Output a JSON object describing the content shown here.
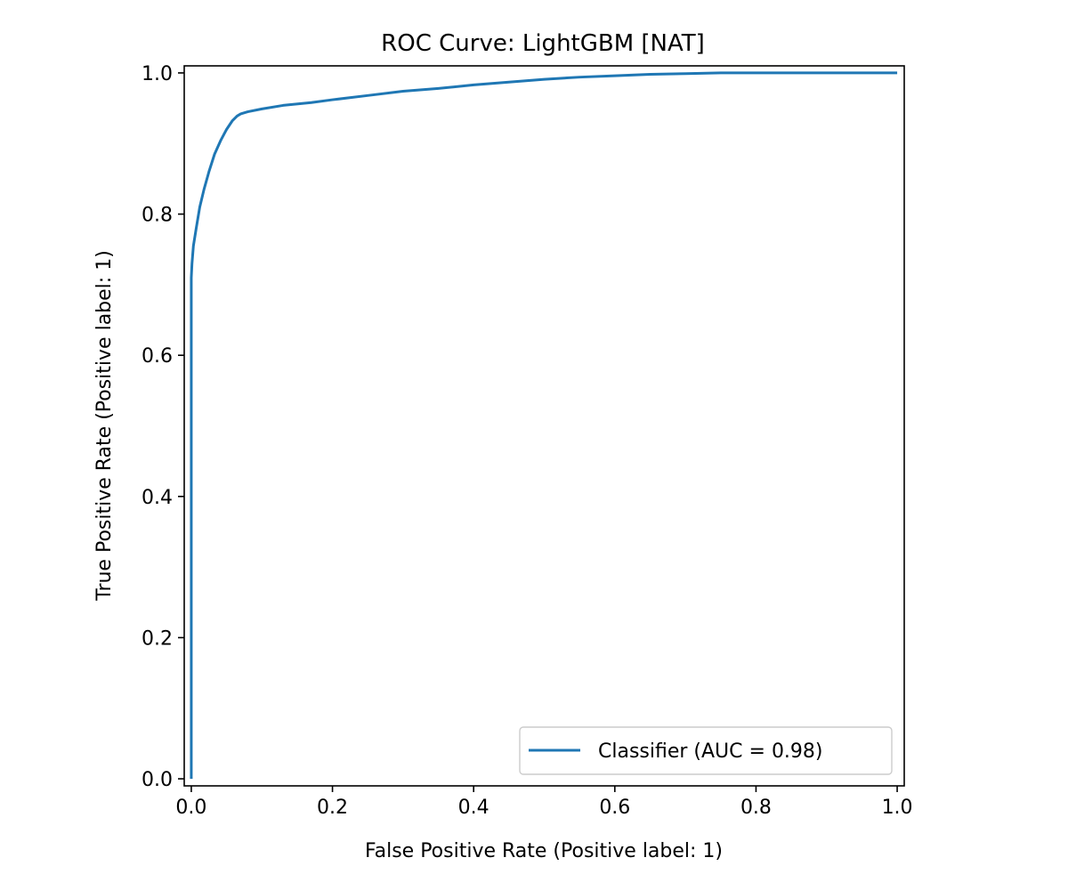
{
  "chart_data": {
    "type": "line",
    "title": "ROC Curve: LightGBM [NAT]",
    "xlabel": "False Positive Rate (Positive label: 1)",
    "ylabel": "True Positive Rate (Positive label: 1)",
    "xlim": [
      -0.01,
      1.01
    ],
    "ylim": [
      -0.01,
      1.01
    ],
    "xticks": [
      "0.0",
      "0.2",
      "0.4",
      "0.6",
      "0.8",
      "1.0"
    ],
    "yticks": [
      "0.0",
      "0.2",
      "0.4",
      "0.6",
      "0.8",
      "1.0"
    ],
    "grid": false,
    "legend_position": "lower-right",
    "series": [
      {
        "name": "Classifier (AUC = 0.98)",
        "color": "#1f77b4",
        "x": [
          0.0,
          0.0,
          0.0,
          0.001,
          0.003,
          0.007,
          0.012,
          0.018,
          0.025,
          0.033,
          0.042,
          0.05,
          0.058,
          0.065,
          0.07,
          0.08,
          0.1,
          0.13,
          0.17,
          0.2,
          0.25,
          0.3,
          0.35,
          0.4,
          0.45,
          0.5,
          0.55,
          0.6,
          0.65,
          0.7,
          0.75,
          0.8,
          0.9,
          1.0
        ],
        "y": [
          0.0,
          0.3,
          0.71,
          0.73,
          0.755,
          0.78,
          0.81,
          0.835,
          0.86,
          0.885,
          0.905,
          0.92,
          0.932,
          0.939,
          0.942,
          0.945,
          0.949,
          0.954,
          0.958,
          0.962,
          0.968,
          0.974,
          0.978,
          0.983,
          0.987,
          0.991,
          0.994,
          0.996,
          0.998,
          0.999,
          1.0,
          1.0,
          1.0,
          1.0
        ]
      }
    ]
  }
}
